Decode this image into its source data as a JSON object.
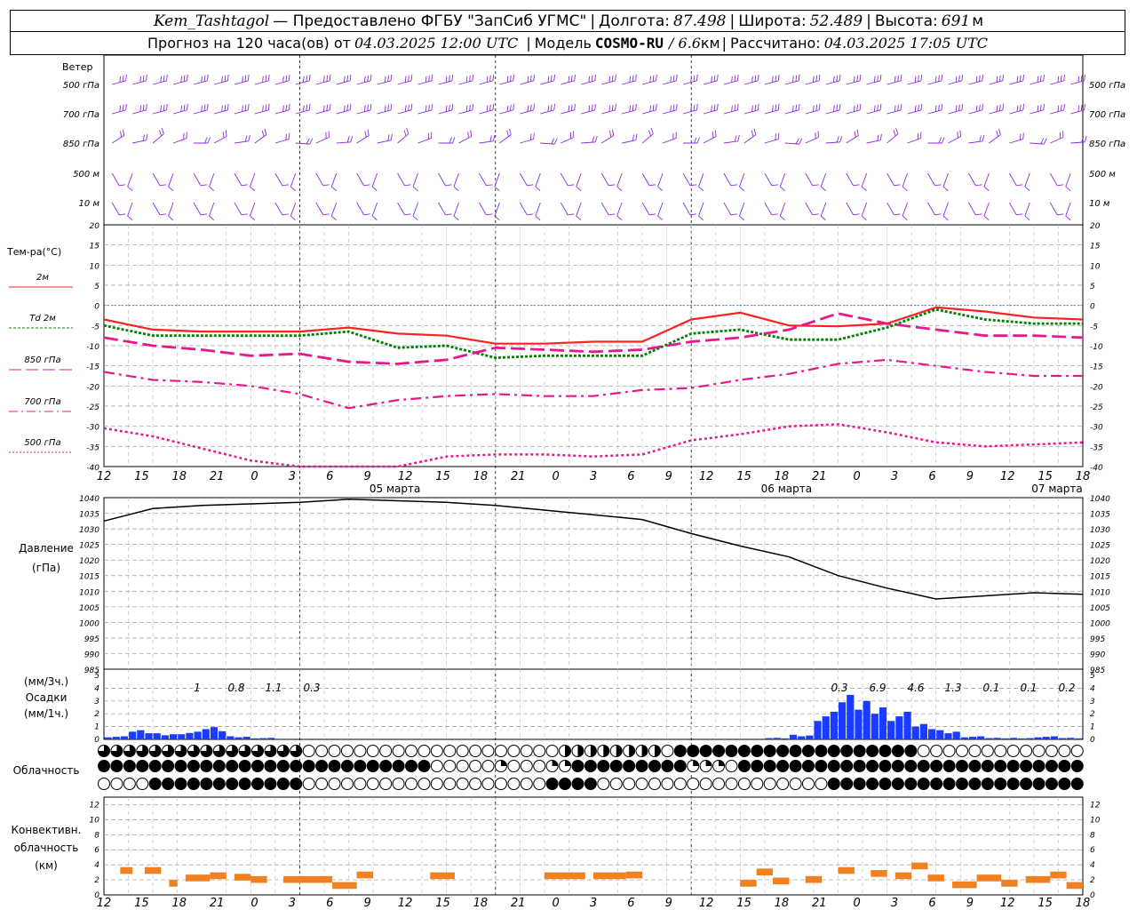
{
  "header": {
    "station": "Kem_Tashtagol",
    "provider": "— Предоставлено ФГБУ \"ЗапСиб УГМС\"",
    "lon_label": "Долгота:",
    "lon": "87.498",
    "lat_label": "Широта:",
    "lat": "52.489",
    "alt_label": "Высота:",
    "alt": "691",
    "alt_unit": "м",
    "forecast_label": "Прогноз на 120 часа(ов) от",
    "start": "04.03.2025 12:00 UTC",
    "model_label": "Модель",
    "model": "COSMO-RU",
    "resolution": "/ 6.6",
    "res_unit": "км",
    "computed_label": "Рассчитано:",
    "computed": "04.03.2025 17:05 UTC"
  },
  "colors": {
    "wind": "#8a2be2",
    "t2m": "#ff2020",
    "td2m": "#008000",
    "t_upper": "#e8188c",
    "pressure": "#000000",
    "precip": "#1a3cff",
    "convective": "#f08020",
    "zero_line": "#3060ff"
  },
  "wind_panel": {
    "title": "Ветер",
    "levels": [
      "500 гПа",
      "700 гПа",
      "850 гПа",
      "500 м",
      "10 м"
    ]
  },
  "temp_panel": {
    "title": "Тем-ра(°С)",
    "legend": [
      "2м",
      "Td 2м",
      "850 гПа",
      "700 гПа",
      "500 гПа"
    ],
    "yticks": [
      "20",
      "15",
      "10",
      "5",
      "0",
      "-5",
      "-10",
      "-15",
      "-20",
      "-25",
      "-30",
      "-35",
      "-40"
    ]
  },
  "x_axis": {
    "hour_labels": [
      "12",
      "15",
      "18",
      "21",
      "0",
      "3",
      "6",
      "9",
      "12",
      "15",
      "18",
      "21",
      "0",
      "3",
      "6",
      "9",
      "12",
      "15",
      "18",
      "21",
      "0",
      "3",
      "6",
      "9",
      "12",
      "15",
      "18"
    ],
    "day_labels": [
      "05 марта",
      "06 марта",
      "07 марта"
    ]
  },
  "pressure_panel": {
    "title": "Давление",
    "unit": "(гПа)",
    "yticks": [
      "1040",
      "1035",
      "1030",
      "1025",
      "1020",
      "1015",
      "1010",
      "1005",
      "1000",
      "995",
      "990",
      "985"
    ]
  },
  "precip_panel": {
    "unit_3h": "(мм/3ч.)",
    "title": "Осадки",
    "unit_1h": "(мм/1ч.)",
    "yticks": [
      "5",
      "4",
      "3",
      "2",
      "1",
      "0"
    ],
    "totals": [
      "1",
      "0.8",
      "1.1",
      "0.3",
      "0.3",
      "6.9",
      "4.6",
      "1.3",
      "0.1",
      "0.1",
      "0.2"
    ]
  },
  "cloud_panel": {
    "title": "Облачность"
  },
  "conv_panel": {
    "title_1": "Конвективн.",
    "title_2": "облачность",
    "unit": "(км)",
    "yticks": [
      "12",
      "10",
      "8",
      "6",
      "4",
      "2",
      "0"
    ]
  },
  "chart_data": [
    {
      "type": "line",
      "title": "Тем-ра(°С)",
      "x_hours_from_start": [
        0,
        6,
        12,
        18,
        24,
        30,
        36,
        42,
        48,
        54,
        60,
        66,
        72,
        78,
        84,
        90,
        96,
        102,
        108,
        114,
        120
      ],
      "ylim": [
        -40,
        20
      ],
      "series": [
        {
          "name": "2м",
          "values": [
            -3.5,
            -6,
            -6.5,
            -6.5,
            -6.5,
            -5.5,
            -7,
            -7.5,
            -9.5,
            -9.5,
            -9,
            -9,
            -3.5,
            -1.8,
            -5,
            -5.2,
            -4.5,
            -0.5,
            -1.5,
            -3,
            -3.5
          ]
        },
        {
          "name": "Td 2м",
          "values": [
            -5,
            -7.5,
            -7.5,
            -7.5,
            -7.5,
            -6.5,
            -10.5,
            -10,
            -13,
            -12.5,
            -12.5,
            -12.5,
            -7,
            -6,
            -8.5,
            -8.5,
            -5.5,
            -1,
            -3.5,
            -4.5,
            -4.5
          ]
        },
        {
          "name": "850 гПа",
          "values": [
            -8,
            -10,
            -11,
            -12.5,
            -12,
            -14,
            -14.5,
            -13.5,
            -10.5,
            -11,
            -11.5,
            -11,
            -9,
            -8,
            -6,
            -2,
            -4.5,
            -6,
            -7.5,
            -7.5,
            -8
          ]
        },
        {
          "name": "700 гПа",
          "values": [
            -16.5,
            -18.5,
            -19,
            -20,
            -22,
            -25.5,
            -23.5,
            -22.5,
            -22,
            -22.5,
            -22.5,
            -21,
            -20.5,
            -18.5,
            -17,
            -14.5,
            -13.5,
            -15,
            -16.5,
            -17.5,
            -17.5
          ]
        },
        {
          "name": "500 гПа",
          "values": [
            -30.5,
            -32.5,
            -35.5,
            -38.5,
            -41,
            -43,
            -41.5,
            -37.5,
            -37,
            -37,
            -37.5,
            -37,
            -33.5,
            -32,
            -30,
            -29.5,
            -31.5,
            -34,
            -35,
            -34.5,
            -34
          ]
        }
      ]
    },
    {
      "type": "line",
      "title": "Давление",
      "x_hours_from_start": [
        0,
        6,
        12,
        18,
        24,
        30,
        36,
        42,
        48,
        54,
        60,
        66,
        72,
        78,
        84,
        90,
        96,
        102,
        108,
        114,
        120
      ],
      "ylim": [
        985,
        1040
      ],
      "series": [
        {
          "name": "Давление",
          "values": [
            1032.5,
            1036.5,
            1037.5,
            1038,
            1038.5,
            1039.5,
            1039,
            1038.5,
            1037.5,
            1036,
            1034.5,
            1033,
            1028.5,
            1024.5,
            1021,
            1015,
            1011,
            1007.5,
            1008.5,
            1009.5,
            1009
          ]
        }
      ]
    },
    {
      "type": "bar",
      "title": "Осадки",
      "x_hours_from_start": [
        3,
        6,
        9,
        12,
        15,
        18,
        21,
        84,
        87,
        90,
        93,
        96,
        99,
        102,
        105,
        108,
        111,
        114,
        117,
        120
      ],
      "ylim": [
        0,
        5
      ],
      "series": [
        {
          "name": "мм/1ч",
          "values": [
            0.2,
            0.6,
            0.4,
            0.5,
            0.8,
            0.2,
            0.1,
            0.1,
            0.3,
            1.8,
            2.9,
            2.5,
            1.8,
            1.0,
            0.6,
            0.2,
            0.1,
            0.1,
            0.2,
            0.1
          ]
        }
      ]
    },
    {
      "type": "bar",
      "title": "Конвективн. облачность",
      "ylim": [
        0,
        13
      ],
      "series": [
        {
          "name": "base_top_km",
          "intervals": [
            [
              2,
              3.5,
              3.2
            ],
            [
              5,
              7,
              3.2
            ],
            [
              8,
              9,
              1.5
            ],
            [
              10,
              13,
              2.2
            ],
            [
              13,
              15,
              2.5
            ],
            [
              16,
              18,
              2.3
            ],
            [
              18,
              20,
              2.0
            ],
            [
              22,
              28,
              2.0
            ],
            [
              28,
              31,
              1.2
            ],
            [
              31,
              33,
              2.6
            ],
            [
              40,
              43,
              2.5
            ],
            [
              54,
              59,
              2.5
            ],
            [
              60,
              64,
              2.5
            ],
            [
              64,
              66,
              2.6
            ],
            [
              78,
              80,
              1.5
            ],
            [
              80,
              82,
              3.0
            ],
            [
              82,
              84,
              1.8
            ],
            [
              86,
              88,
              2.0
            ],
            [
              90,
              92,
              3.2
            ],
            [
              94,
              96,
              2.8
            ],
            [
              97,
              99,
              2.5
            ],
            [
              99,
              101,
              3.8
            ],
            [
              101,
              103,
              2.2
            ],
            [
              104,
              107,
              1.3
            ],
            [
              107,
              110,
              2.2
            ],
            [
              110,
              112,
              1.5
            ],
            [
              113,
              116,
              2.0
            ],
            [
              116,
              118,
              2.6
            ],
            [
              118,
              120,
              1.2
            ]
          ]
        }
      ]
    }
  ]
}
